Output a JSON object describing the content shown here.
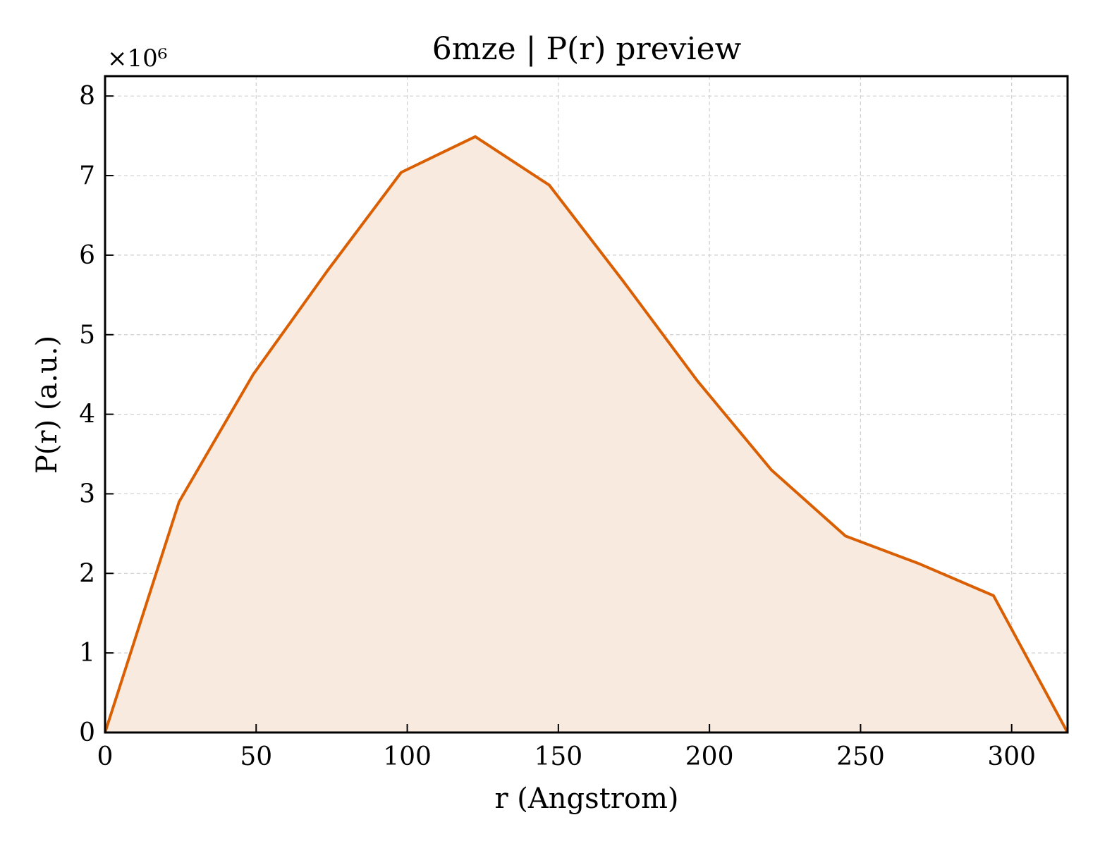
{
  "chart_data": {
    "type": "area",
    "title": "6mze | P(r) preview",
    "xlabel": "r (Angstrom)",
    "ylabel": "P(r) (a.u.)",
    "y_offset_label": "×10⁶",
    "xlim": [
      0,
      318.5
    ],
    "ylim": [
      0,
      8.25
    ],
    "y_scale": 1000000,
    "grid": true,
    "x_ticks": [
      "0",
      "50",
      "100",
      "150",
      "200",
      "250",
      "300"
    ],
    "y_ticks": [
      "0",
      "1",
      "2",
      "3",
      "4",
      "5",
      "6",
      "7",
      "8"
    ],
    "colors": {
      "line": "#d95f02",
      "fill": "#f9eadf"
    },
    "series": [
      {
        "x": [
          0,
          24.5,
          49,
          73.5,
          98,
          122.5,
          147,
          171.5,
          196,
          220.5,
          245,
          269.5,
          294,
          318.5
        ],
        "y": [
          0,
          2.9,
          4.5,
          5.8,
          7.04,
          7.49,
          6.88,
          5.67,
          4.42,
          3.3,
          2.47,
          2.12,
          1.72,
          0
        ]
      }
    ]
  }
}
